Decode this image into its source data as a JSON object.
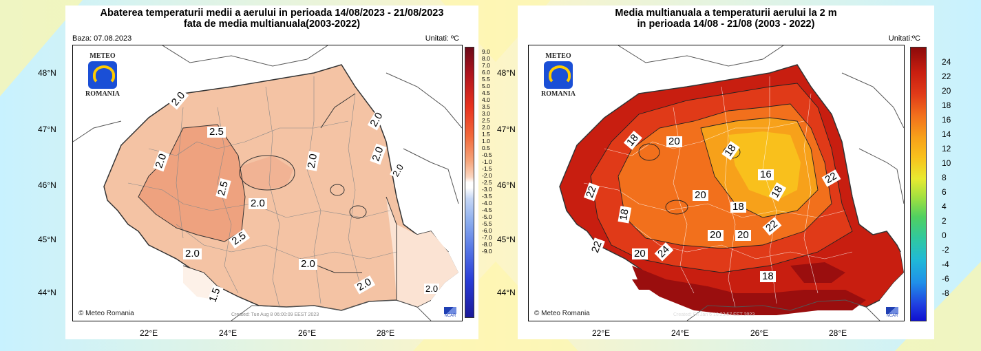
{
  "background": {
    "accent_yellow": "#fff8b0",
    "accent_cyan": "#c8f2ff"
  },
  "left": {
    "title_line1": "Abaterea temperaturii medii a aerului in perioada 14/08/2023 - 21/08/2023",
    "title_line2": "fata de media multianuala(2003-2022)",
    "baza": "Baza: 07.08.2023",
    "units": "Unitati: ºC",
    "credit": "Meteo Romania",
    "created": "Created: Tue Aug  8 06:00:09 EEST 2023",
    "logo_top": "METEO",
    "logo_bottom": "ROMANIA",
    "ncar": "NCAR",
    "lat_labels": [
      "48°N",
      "47°N",
      "46°N",
      "45°N",
      "44°N"
    ],
    "lon_labels": [
      "22°E",
      "24°E",
      "26°E",
      "28°E"
    ],
    "colorbar_labels": [
      "9.0",
      "8.0",
      "7.0",
      "6.0",
      "5.5",
      "5.0",
      "4.5",
      "4.0",
      "3.5",
      "3.0",
      "2.5",
      "2.0",
      "1.5",
      "1.0",
      "0.5",
      "-0.5",
      "-1.0",
      "-1.5",
      "-2.0",
      "-2.5",
      "-3.0",
      "-3.5",
      "-4.0",
      "-4.5",
      "-5.0",
      "-5.5",
      "-6.0",
      "-7.0",
      "-8.0",
      "-9.0"
    ],
    "contour_labels": [
      "2.0",
      "2.5",
      "2.0",
      "2.0",
      "2.5",
      "2.0",
      "2.0",
      "2.0",
      "2.5",
      "2.0",
      "2.0",
      "1.5",
      "2.0",
      "2.0",
      "2.0"
    ]
  },
  "right": {
    "title_line1": "Media multianuala a temperaturii aerului la 2 m",
    "title_line2": "in perioada 14/08 - 21/08 (2003 - 2022)",
    "units": "Unitati:ºC",
    "credit": "Meteo Romania",
    "created": "Created: Fri Jan  6 16:23:57 EET 2023",
    "logo_top": "METEO",
    "logo_bottom": "ROMANIA",
    "ncar": "NCAR",
    "lat_labels": [
      "48°N",
      "47°N",
      "46°N",
      "45°N",
      "44°N"
    ],
    "lon_labels": [
      "22°E",
      "24°E",
      "26°E",
      "28°E"
    ],
    "colorbar_labels": [
      "24",
      "22",
      "20",
      "18",
      "16",
      "14",
      "12",
      "10",
      "8",
      "6",
      "4",
      "2",
      "0",
      "-2",
      "-4",
      "-6",
      "-8"
    ],
    "contour_labels": [
      "18",
      "20",
      "18",
      "16",
      "22",
      "22",
      "20",
      "18",
      "18",
      "18",
      "20",
      "20",
      "22",
      "22",
      "20",
      "24",
      "18"
    ]
  }
}
